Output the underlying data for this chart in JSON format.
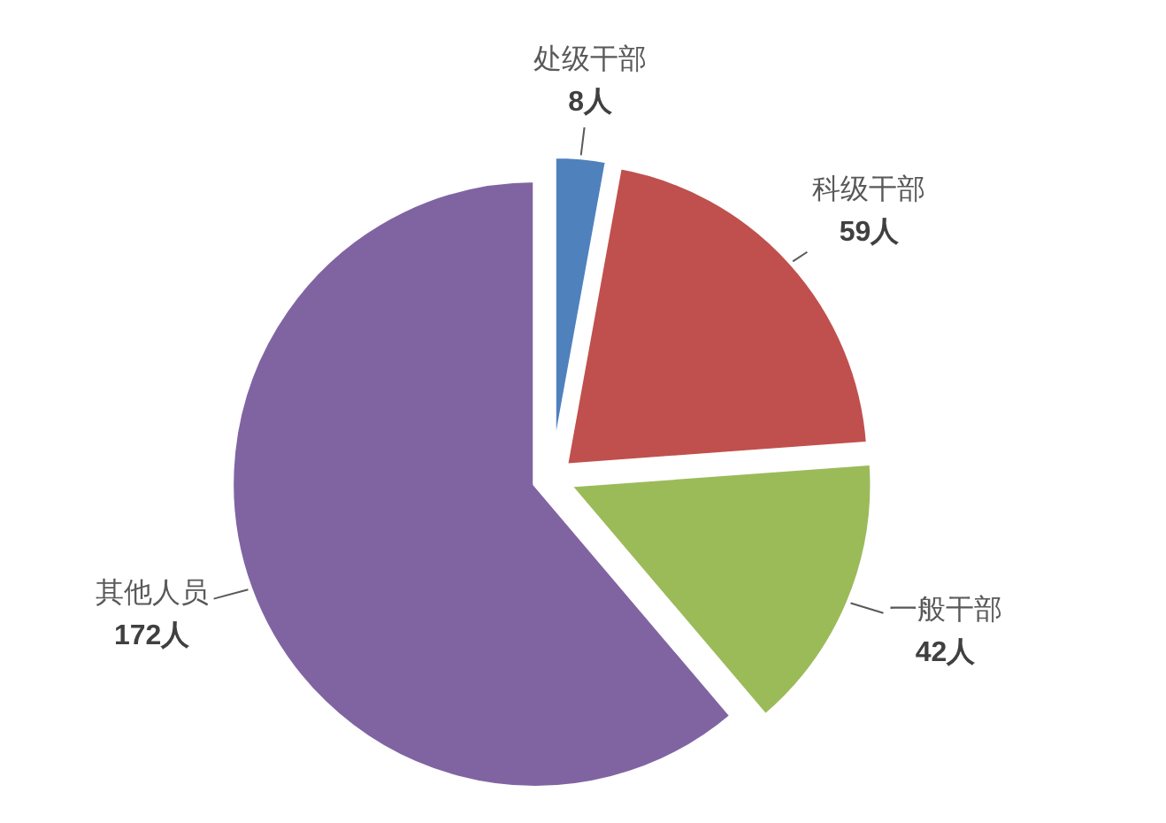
{
  "chart_data": {
    "type": "pie",
    "categories": [
      "处级干部",
      "科级干部",
      "一般干部",
      "其他人员"
    ],
    "values": [
      8,
      59,
      42,
      172
    ],
    "value_labels": [
      "8人",
      "59人",
      "42人",
      "172人"
    ],
    "colors": [
      "#4f81bd",
      "#c0504d",
      "#9bbb59",
      "#8064a2"
    ]
  }
}
